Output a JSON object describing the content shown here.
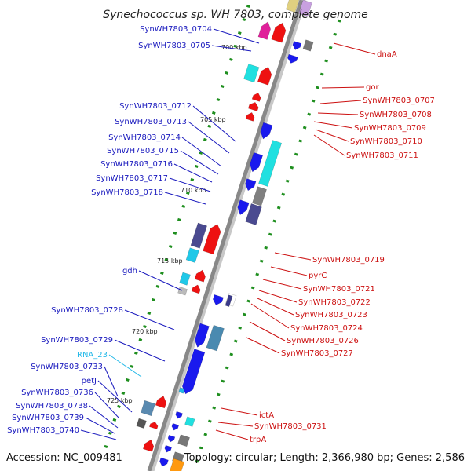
{
  "title": "Synechococcus sp. WH 7803, complete genome",
  "footer": {
    "accession": "Accession: NC_009481",
    "summary": "Topology: circular; Length: 2,366,980 bp; Genes: 2,586"
  },
  "colors": {
    "forward": "#1a1aee",
    "reverse": "#ee1111",
    "rna": "#22b8e8",
    "backbone": "#888888",
    "tick": "#1f8f1f"
  },
  "kbp_ticks": [
    "700 kbp",
    "705 kbp",
    "710 kbp",
    "715 kbp",
    "720 kbp",
    "725 kbp"
  ],
  "left_labels": [
    "SynWH7803_0704",
    "SynWH7803_0705",
    "SynWH7803_0712",
    "SynWH7803_0713",
    "SynWH7803_0714",
    "SynWH7803_0715",
    "SynWH7803_0716",
    "SynWH7803_0717",
    "SynWH7803_0718",
    "gdh",
    "SynWH7803_0728",
    "SynWH7803_0729",
    "RNA_23",
    "SynWH7803_0733",
    "petJ",
    "SynWH7803_0736",
    "SynWH7803_0738",
    "SynWH7803_0739",
    "SynWH7803_0740"
  ],
  "right_labels": [
    "dnaA",
    "gor",
    "SynWH7803_0707",
    "SynWH7803_0708",
    "SynWH7803_0709",
    "SynWH7803_0710",
    "SynWH7803_0711",
    "SynWH7803_0719",
    "pyrC",
    "SynWH7803_0721",
    "SynWH7803_0722",
    "SynWH7803_0723",
    "SynWH7803_0724",
    "SynWH7803_0726",
    "SynWH7803_0727",
    "ictA",
    "SynWH7803_0731",
    "trpA"
  ]
}
